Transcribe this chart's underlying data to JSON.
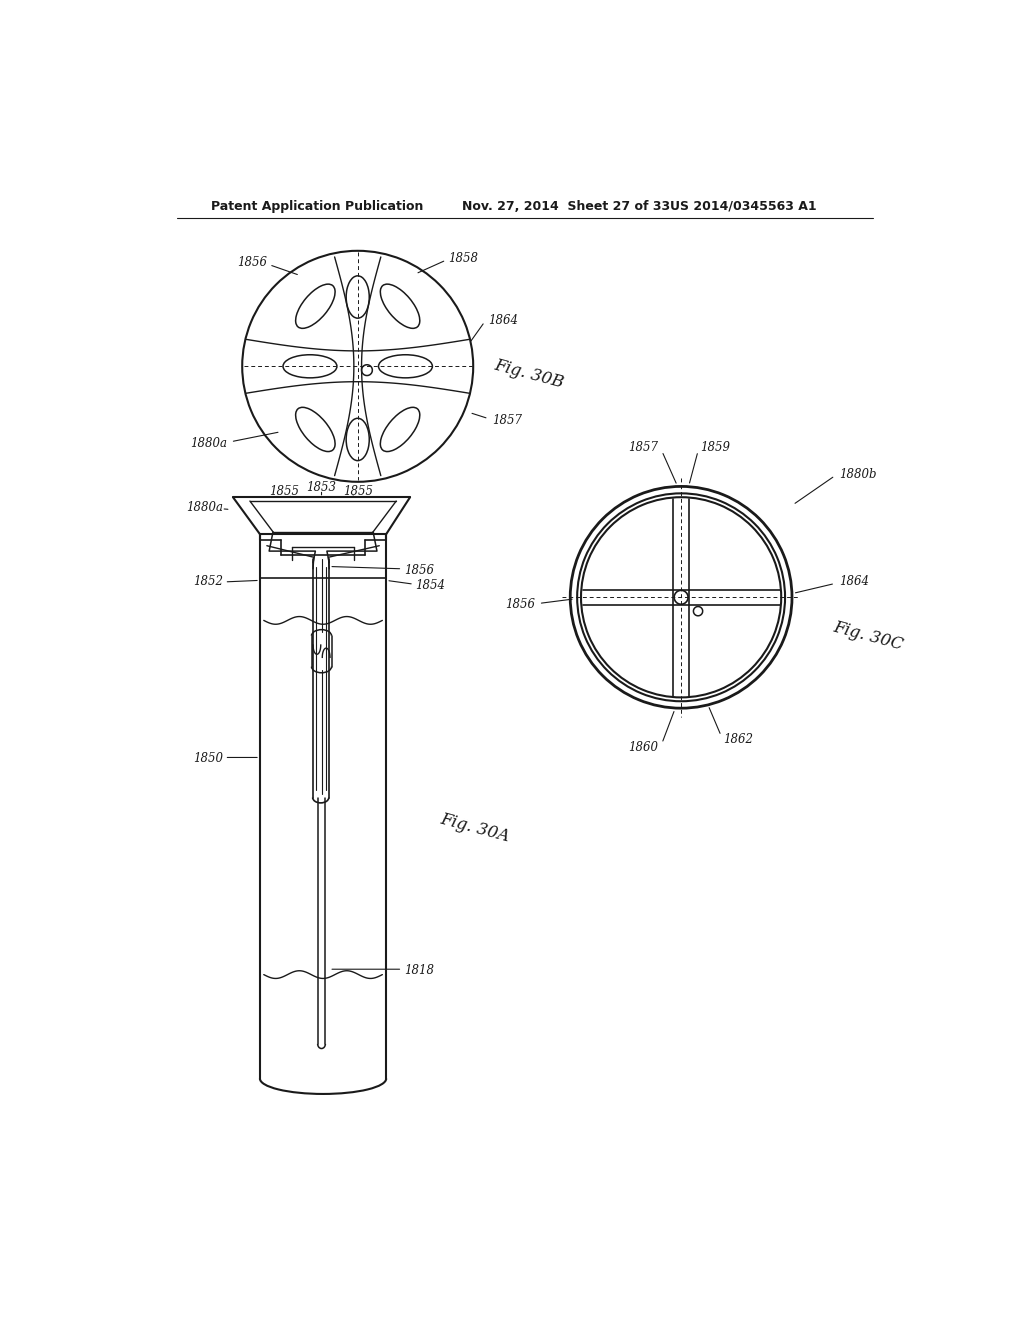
{
  "bg_color": "#ffffff",
  "line_color": "#1a1a1a",
  "header_text_left": "Patent Application Publication",
  "header_text_mid": "Nov. 27, 2014  Sheet 27 of 33",
  "header_text_right": "US 2014/0345563 A1",
  "fig30A_label": "Fig. 30A",
  "fig30B_label": "Fig. 30B",
  "fig30C_label": "Fig. 30C"
}
